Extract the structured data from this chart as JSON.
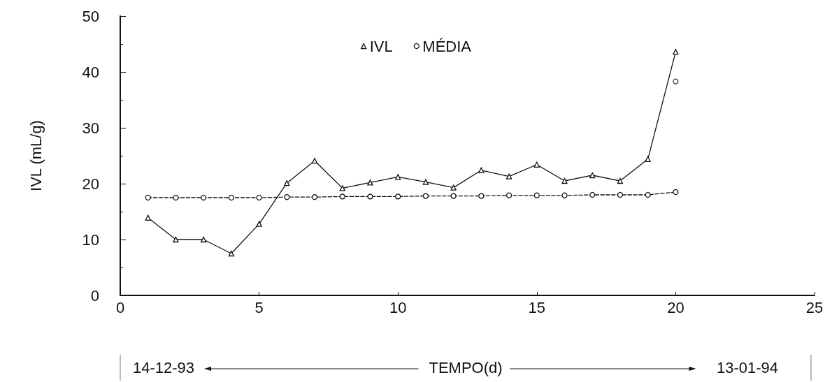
{
  "chart_data": {
    "type": "line",
    "xlabel": "TEMPO(d)",
    "ylabel": "IVL (mL/g)",
    "x": [
      1,
      2,
      3,
      4,
      5,
      6,
      7,
      8,
      9,
      10,
      11,
      12,
      13,
      14,
      15,
      16,
      17,
      18,
      19,
      20
    ],
    "series": [
      {
        "name": "IVL",
        "color": "#111111",
        "marker": "triangle",
        "line_style": "solid",
        "values": [
          13.9,
          10,
          10,
          7.5,
          12.8,
          20.1,
          24.1,
          19.2,
          20.2,
          21.2,
          20.3,
          19.3,
          22.4,
          21.3,
          23.4,
          20.5,
          21.5,
          20.5,
          24.4,
          43.6
        ]
      },
      {
        "name": "MÉDIA",
        "color": "#111111",
        "marker": "circle",
        "line_style": "dashed",
        "values": [
          17.5,
          17.5,
          17.5,
          17.5,
          17.5,
          17.6,
          17.6,
          17.7,
          17.7,
          17.7,
          17.8,
          17.8,
          17.8,
          17.9,
          17.9,
          17.9,
          18,
          18,
          18,
          18.5
        ]
      },
      {
        "type": "scatter",
        "color": "#111111",
        "marker": "circle",
        "x": [
          20
        ],
        "values": [
          38.3
        ]
      }
    ],
    "xlim": [
      0,
      25
    ],
    "xticks": [
      0,
      5,
      10,
      15,
      20,
      25
    ],
    "ylim": [
      0,
      50
    ],
    "yticks": [
      0,
      10,
      20,
      30,
      40,
      50
    ],
    "grid": false,
    "legend": "top",
    "annotations": [
      "14-12-93",
      "13-01-94"
    ]
  }
}
